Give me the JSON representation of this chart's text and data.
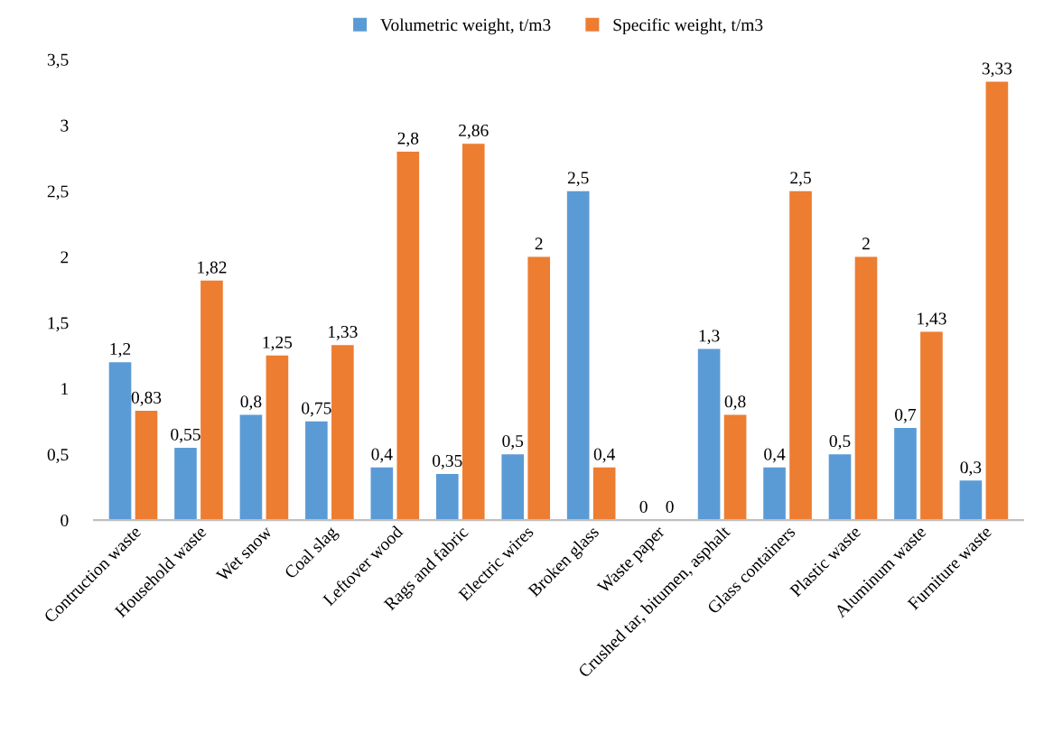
{
  "chart_data": {
    "type": "bar",
    "categories": [
      "Contruction waste",
      "Household waste",
      "Wet snow",
      "Coal slag",
      "Leftover wood",
      "Rags and fabric",
      "Electric wires",
      "Broken glass",
      "Waste paper",
      "Crushed tar, bitumen, asphalt",
      "Glass containers",
      "Plastic waste",
      "Aluminum waste",
      "Furniture waste"
    ],
    "series": [
      {
        "name": "Volumetric weight, t/m3",
        "color": "#5b9bd5",
        "values": [
          1.2,
          0.55,
          0.8,
          0.75,
          0.4,
          0.35,
          0.5,
          2.5,
          0,
          1.3,
          0.4,
          0.5,
          0.7,
          0.3
        ],
        "value_labels": [
          "1,2",
          "0,55",
          "0,8",
          "0,75",
          "0,4",
          "0,35",
          "0,5",
          "2,5",
          "0",
          "1,3",
          "0,4",
          "0,5",
          "0,7",
          "0,3"
        ]
      },
      {
        "name": "Specific weight, t/m3",
        "color": "#ed7d31",
        "values": [
          0.83,
          1.82,
          1.25,
          1.33,
          2.8,
          2.86,
          2,
          0.4,
          0,
          0.8,
          2.5,
          2,
          1.43,
          3.33
        ],
        "value_labels": [
          "0,83",
          "1,82",
          "1,25",
          "1,33",
          "2,8",
          "2,86",
          "2",
          "0,4",
          "0",
          "0,8",
          "2,5",
          "2",
          "1,43",
          "3,33"
        ]
      }
    ],
    "ylim": [
      0,
      3.5
    ],
    "yticks": [
      0,
      {
        "value": 0.5,
        "label": "0,5"
      },
      1,
      {
        "value": 1.5,
        "label": "1,5"
      },
      2,
      {
        "value": 2.5,
        "label": "2,5"
      },
      3,
      {
        "value": 3.5,
        "label": "3,5"
      }
    ],
    "legend": "top",
    "grid": false
  }
}
